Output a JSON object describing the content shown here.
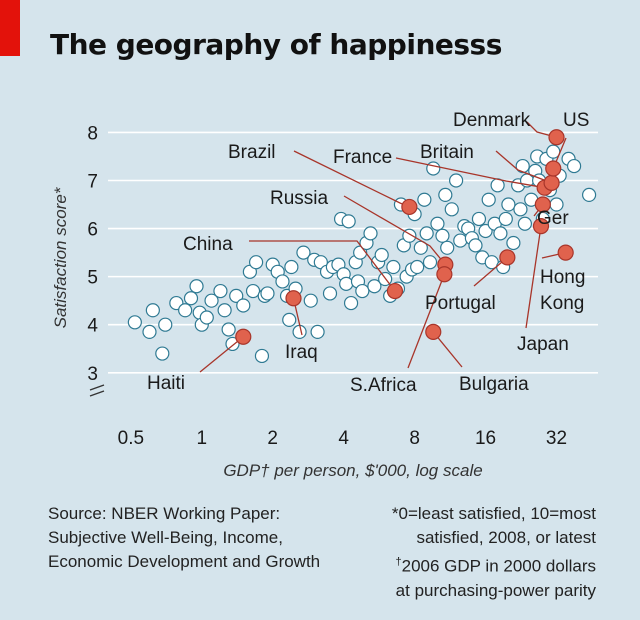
{
  "chart_data": {
    "type": "scatter",
    "title": "The geography of happinesss",
    "xlabel": "GDP† per person, $'000, log scale",
    "ylabel": "Satisfaction score*",
    "x_scale": "log2",
    "xlim": [
      0.4,
      48
    ],
    "ylim": [
      2.6,
      8.3
    ],
    "x_ticks": [
      0.5,
      1,
      2,
      4,
      8,
      16,
      32
    ],
    "x_tick_labels": [
      "0.5",
      "1",
      "2",
      "4",
      "8",
      "16",
      "32"
    ],
    "y_ticks": [
      3,
      4,
      5,
      6,
      7,
      8
    ],
    "y_tick_labels": [
      "3",
      "4",
      "5",
      "6",
      "7",
      "8"
    ],
    "y_axis_break": true,
    "grid": "horizontal",
    "colors": {
      "background": "#d5e4ec",
      "grid": "#ffffff",
      "point_fill": "#ffffff",
      "point_stroke": "#2f7a93",
      "highlight_fill": "#e0624d",
      "highlight_stroke": "#a8352a",
      "leader": "#a8352a",
      "brand_tag": "#e3120b"
    },
    "series": [
      {
        "group": "other countries",
        "points": [
          [
            0.52,
            4.05
          ],
          [
            0.6,
            3.85
          ],
          [
            0.62,
            4.3
          ],
          [
            0.68,
            3.4
          ],
          [
            0.7,
            4.0
          ],
          [
            0.78,
            4.45
          ],
          [
            0.85,
            4.3
          ],
          [
            0.9,
            4.55
          ],
          [
            0.95,
            4.8
          ],
          [
            0.98,
            4.25
          ],
          [
            1.0,
            4.0
          ],
          [
            1.05,
            4.15
          ],
          [
            1.1,
            4.5
          ],
          [
            1.2,
            4.7
          ],
          [
            1.25,
            4.3
          ],
          [
            1.3,
            3.9
          ],
          [
            1.35,
            3.6
          ],
          [
            1.4,
            4.6
          ],
          [
            1.5,
            4.4
          ],
          [
            1.6,
            5.1
          ],
          [
            1.65,
            4.7
          ],
          [
            1.7,
            5.3
          ],
          [
            1.8,
            3.35
          ],
          [
            1.85,
            4.6
          ],
          [
            1.9,
            4.65
          ],
          [
            2.0,
            5.25
          ],
          [
            2.1,
            5.1
          ],
          [
            2.2,
            4.9
          ],
          [
            2.3,
            4.6
          ],
          [
            2.35,
            4.1
          ],
          [
            2.4,
            5.2
          ],
          [
            2.5,
            4.75
          ],
          [
            2.6,
            3.85
          ],
          [
            2.7,
            5.5
          ],
          [
            2.9,
            4.5
          ],
          [
            3.0,
            5.35
          ],
          [
            3.1,
            3.85
          ],
          [
            3.2,
            5.3
          ],
          [
            3.4,
            5.1
          ],
          [
            3.5,
            4.65
          ],
          [
            3.6,
            5.2
          ],
          [
            3.8,
            5.25
          ],
          [
            3.9,
            6.2
          ],
          [
            4.0,
            5.05
          ],
          [
            4.1,
            4.85
          ],
          [
            4.2,
            6.15
          ],
          [
            4.3,
            4.45
          ],
          [
            4.5,
            5.3
          ],
          [
            4.6,
            4.9
          ],
          [
            4.7,
            5.5
          ],
          [
            4.8,
            4.7
          ],
          [
            5.0,
            5.7
          ],
          [
            5.2,
            5.9
          ],
          [
            5.4,
            4.8
          ],
          [
            5.6,
            5.3
          ],
          [
            5.8,
            5.45
          ],
          [
            6.0,
            4.95
          ],
          [
            6.3,
            4.6
          ],
          [
            6.5,
            5.2
          ],
          [
            6.8,
            4.75
          ],
          [
            7.0,
            6.5
          ],
          [
            7.2,
            5.65
          ],
          [
            7.4,
            5.0
          ],
          [
            7.6,
            5.85
          ],
          [
            7.8,
            5.15
          ],
          [
            8.0,
            6.3
          ],
          [
            8.2,
            5.2
          ],
          [
            8.5,
            5.6
          ],
          [
            8.8,
            6.6
          ],
          [
            9.0,
            5.9
          ],
          [
            9.3,
            5.3
          ],
          [
            9.6,
            7.25
          ],
          [
            10.0,
            6.1
          ],
          [
            10.5,
            5.85
          ],
          [
            10.8,
            6.7
          ],
          [
            11.0,
            5.6
          ],
          [
            11.5,
            6.4
          ],
          [
            12.0,
            7.0
          ],
          [
            12.5,
            5.75
          ],
          [
            13.0,
            6.05
          ],
          [
            13.5,
            6.0
          ],
          [
            14.0,
            5.8
          ],
          [
            14.5,
            5.65
          ],
          [
            15.0,
            6.2
          ],
          [
            15.5,
            5.4
          ],
          [
            16.0,
            5.95
          ],
          [
            16.5,
            6.6
          ],
          [
            17.0,
            5.3
          ],
          [
            17.5,
            6.1
          ],
          [
            18.0,
            6.9
          ],
          [
            18.5,
            5.9
          ],
          [
            19.0,
            5.2
          ],
          [
            19.5,
            6.2
          ],
          [
            20.0,
            6.5
          ],
          [
            21.0,
            5.7
          ],
          [
            22.0,
            6.9
          ],
          [
            22.5,
            6.4
          ],
          [
            23.0,
            7.3
          ],
          [
            23.5,
            6.1
          ],
          [
            24.0,
            7.0
          ],
          [
            25.0,
            6.6
          ],
          [
            26.0,
            7.2
          ],
          [
            26.5,
            7.5
          ],
          [
            27.0,
            7.0
          ],
          [
            28.0,
            6.2
          ],
          [
            29.0,
            7.45
          ],
          [
            30.0,
            6.8
          ],
          [
            31.0,
            7.6
          ],
          [
            32.0,
            6.5
          ],
          [
            33.0,
            7.1
          ],
          [
            36.0,
            7.45
          ],
          [
            38.0,
            7.3
          ],
          [
            44.0,
            6.7
          ]
        ]
      },
      {
        "group": "highlighted countries",
        "points": [
          {
            "name": "Haiti",
            "x": 1.5,
            "y": 3.75
          },
          {
            "name": "Iraq",
            "x": 2.45,
            "y": 4.55
          },
          {
            "name": "China",
            "x": 6.6,
            "y": 4.7
          },
          {
            "name": "Brazil",
            "x": 7.6,
            "y": 6.45
          },
          {
            "name": "Russia",
            "x": 10.8,
            "y": 5.25
          },
          {
            "name": "S.Africa",
            "x": 10.7,
            "y": 5.05
          },
          {
            "name": "Bulgaria",
            "x": 9.6,
            "y": 3.85
          },
          {
            "name": "Portugal",
            "x": 19.8,
            "y": 5.4
          },
          {
            "name": "Japan",
            "x": 27.5,
            "y": 6.05
          },
          {
            "name": "Ger",
            "x": 28.0,
            "y": 6.5
          },
          {
            "name": "France",
            "x": 28.5,
            "y": 6.85
          },
          {
            "name": "Britain",
            "x": 30.5,
            "y": 6.95
          },
          {
            "name": "US",
            "x": 31.0,
            "y": 7.25
          },
          {
            "name": "Denmark",
            "x": 32.0,
            "y": 7.9
          },
          {
            "name": "Hong Kong",
            "x": 35.0,
            "y": 5.5
          }
        ]
      }
    ],
    "labels": [
      {
        "text": "Denmark",
        "point": "Denmark"
      },
      {
        "text": "US",
        "point": "US"
      },
      {
        "text": "Britain",
        "point": "Britain"
      },
      {
        "text": "France",
        "point": "France"
      },
      {
        "text": "Brazil",
        "point": "Brazil"
      },
      {
        "text": "Russia",
        "point": "Russia"
      },
      {
        "text": "Ger",
        "point": "Ger"
      },
      {
        "text": "China",
        "point": "China"
      },
      {
        "text": "Hong",
        "point": "Hong Kong"
      },
      {
        "text": "Kong",
        "point": "Hong Kong"
      },
      {
        "text": "Portugal",
        "point": "Portugal"
      },
      {
        "text": "Japan",
        "point": "Japan"
      },
      {
        "text": "Iraq",
        "point": "Iraq"
      },
      {
        "text": "Haiti",
        "point": "Haiti"
      },
      {
        "text": "S.Africa",
        "point": "S.Africa"
      },
      {
        "text": "Bulgaria",
        "point": "Bulgaria"
      }
    ]
  },
  "footer": {
    "source": "Source: NBER Working Paper: Subjective Well-Being, Income, Economic Development and Growth",
    "note_line1": "*0=least satisfied, 10=most",
    "note_line2": "satisfied, 2008, or latest",
    "note_line3_mark": "†",
    "note_line3_text": "2006 GDP in 2000 dollars",
    "note_line4": "at purchasing-power parity"
  }
}
